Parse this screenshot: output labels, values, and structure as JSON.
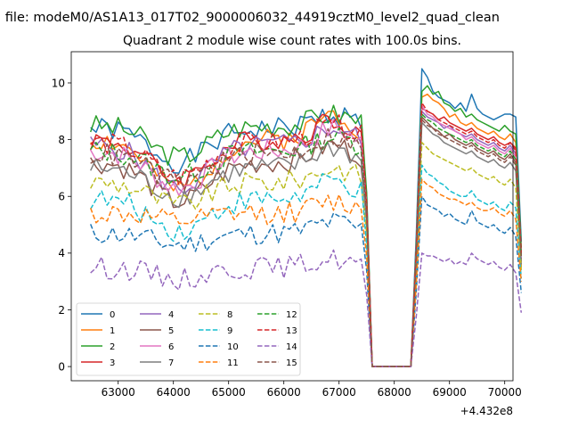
{
  "header_text": "n file: modeM0/AS1A13_017T02_9000006032_44919cztM0_level2_quad_clean",
  "chart_data": {
    "type": "line",
    "title": "Quadrant 2 module wise count rates with 100.0s bins.",
    "xlabel": "",
    "ylabel": "",
    "x_offset_label": "+4.432e8",
    "xlim": [
      62150,
      70150
    ],
    "ylim": [
      -0.5,
      11.1
    ],
    "xticks": [
      63000,
      64000,
      65000,
      66000,
      67000,
      68000,
      69000,
      70000
    ],
    "xtick_labels": [
      "63000",
      "64000",
      "65000",
      "66000",
      "67000",
      "68000",
      "69000",
      "70000"
    ],
    "yticks": [
      0,
      2,
      4,
      6,
      8,
      10
    ],
    "ytick_labels": [
      "0",
      "2",
      "4",
      "6",
      "8",
      "10"
    ],
    "grid": false,
    "legend": {
      "placement": "lower-left",
      "columns": 4
    },
    "x_start": 62500,
    "x_step": 100,
    "series": [
      {
        "name": "0",
        "color": "#1f77b4",
        "dash": "solid",
        "base": 8.4,
        "drop": 1.2,
        "bump": 0.5,
        "seed": 1,
        "post": [
          10.5,
          10.2,
          9.7,
          9.5,
          9.4,
          9.3,
          9.1,
          9.3,
          9.0,
          9.6,
          9.1,
          8.9,
          8.8,
          8.7,
          8.8,
          8.9,
          8.9,
          8.8,
          4.4
        ]
      },
      {
        "name": "1",
        "color": "#ff7f0e",
        "dash": "solid",
        "base": 8.0,
        "drop": 1.8,
        "bump": 0.9,
        "seed": 2,
        "post": [
          9.5,
          9.6,
          9.4,
          9.3,
          9.1,
          8.8,
          8.9,
          8.6,
          8.5,
          8.6,
          8.4,
          8.3,
          8.2,
          8.3,
          8.1,
          8.0,
          8.2,
          7.9,
          3.5
        ]
      },
      {
        "name": "2",
        "color": "#2ca02c",
        "dash": "solid",
        "base": 8.5,
        "drop": 1.1,
        "bump": 0.4,
        "seed": 3,
        "post": [
          9.7,
          9.9,
          9.6,
          9.7,
          9.3,
          9.2,
          9.0,
          9.1,
          8.8,
          8.9,
          8.7,
          8.6,
          8.5,
          8.4,
          8.3,
          8.5,
          8.3,
          8.2,
          4.2
        ]
      },
      {
        "name": "3",
        "color": "#d62728",
        "dash": "solid",
        "base": 8.0,
        "drop": 1.4,
        "bump": 0.7,
        "seed": 4,
        "post": [
          9.1,
          9.0,
          8.9,
          8.7,
          8.8,
          8.6,
          8.5,
          8.4,
          8.3,
          8.4,
          8.2,
          8.1,
          8.0,
          8.1,
          7.9,
          7.8,
          7.9,
          7.7,
          4.0
        ]
      },
      {
        "name": "4",
        "color": "#9467bd",
        "dash": "solid",
        "base": 7.8,
        "drop": 1.5,
        "bump": 0.6,
        "seed": 5,
        "post": [
          9.0,
          8.8,
          8.7,
          8.6,
          8.4,
          8.5,
          8.3,
          8.2,
          8.1,
          8.2,
          8.0,
          7.9,
          7.8,
          7.9,
          7.7,
          7.6,
          7.8,
          7.5,
          3.9
        ]
      },
      {
        "name": "5",
        "color": "#8c564b",
        "dash": "solid",
        "base": 7.2,
        "drop": 1.4,
        "bump": 0.6,
        "seed": 6,
        "post": [
          8.8,
          8.6,
          8.4,
          8.3,
          8.1,
          8.2,
          8.0,
          7.9,
          7.8,
          7.9,
          7.7,
          7.6,
          7.5,
          7.6,
          7.4,
          7.3,
          7.5,
          7.2,
          3.7
        ]
      },
      {
        "name": "6",
        "color": "#e377c2",
        "dash": "solid",
        "base": 7.6,
        "drop": 1.3,
        "bump": 0.8,
        "seed": 7,
        "post": [
          9.2,
          8.9,
          8.8,
          8.6,
          8.5,
          8.4,
          8.3,
          8.2,
          8.0,
          8.1,
          7.9,
          7.8,
          7.7,
          7.8,
          7.6,
          7.5,
          7.7,
          7.4,
          3.8
        ]
      },
      {
        "name": "7",
        "color": "#7f7f7f",
        "dash": "solid",
        "base": 7.0,
        "drop": 1.0,
        "bump": 0.7,
        "seed": 8,
        "post": [
          8.6,
          8.4,
          8.2,
          8.1,
          7.9,
          7.8,
          7.7,
          7.6,
          7.5,
          7.6,
          7.4,
          7.3,
          7.2,
          7.3,
          7.1,
          7.0,
          7.2,
          6.9,
          3.6
        ]
      },
      {
        "name": "8",
        "color": "#bcbd22",
        "dash": "dashed",
        "base": 6.5,
        "drop": 0.8,
        "bump": 0.5,
        "seed": 9,
        "post": [
          7.9,
          7.7,
          7.5,
          7.4,
          7.3,
          7.2,
          7.1,
          7.0,
          6.9,
          7.0,
          6.8,
          6.7,
          6.6,
          6.7,
          6.5,
          6.4,
          6.6,
          6.3,
          3.4
        ]
      },
      {
        "name": "9",
        "color": "#17becf",
        "dash": "dashed",
        "base": 5.9,
        "drop": 1.1,
        "bump": 0.6,
        "seed": 10,
        "post": [
          7.1,
          6.8,
          6.7,
          6.5,
          6.4,
          6.2,
          6.1,
          6.0,
          6.0,
          6.2,
          5.9,
          5.8,
          5.7,
          5.8,
          5.6,
          5.5,
          5.8,
          5.6,
          3.1
        ]
      },
      {
        "name": "10",
        "color": "#1f77b4",
        "dash": "dashed",
        "base": 4.7,
        "drop": 0.4,
        "bump": 0.4,
        "seed": 11,
        "post": [
          6.0,
          5.7,
          5.6,
          5.5,
          5.3,
          5.4,
          5.2,
          5.1,
          5.0,
          5.5,
          5.1,
          5.0,
          4.9,
          5.0,
          4.8,
          4.7,
          4.9,
          4.6,
          2.6
        ]
      },
      {
        "name": "11",
        "color": "#ff7f0e",
        "dash": "dashed",
        "base": 5.4,
        "drop": 0.3,
        "bump": 0.4,
        "seed": 12,
        "post": [
          6.6,
          6.4,
          6.3,
          6.1,
          6.0,
          5.9,
          5.9,
          5.8,
          5.7,
          5.8,
          5.6,
          5.5,
          5.5,
          5.6,
          5.4,
          5.3,
          5.5,
          5.2,
          3.0
        ]
      },
      {
        "name": "12",
        "color": "#2ca02c",
        "dash": "dashed",
        "base": 7.6,
        "drop": 0.9,
        "bump": 0.5,
        "seed": 13,
        "post": [
          8.9,
          8.7,
          8.6,
          8.4,
          8.3,
          8.2,
          8.1,
          8.0,
          7.9,
          8.0,
          7.8,
          7.7,
          7.6,
          7.7,
          7.5,
          7.4,
          7.6,
          7.3,
          3.9
        ]
      },
      {
        "name": "13",
        "color": "#d62728",
        "dash": "dashed",
        "base": 7.9,
        "drop": 1.2,
        "bump": 0.6,
        "seed": 14,
        "post": [
          9.3,
          9.0,
          8.9,
          8.7,
          8.6,
          8.5,
          8.4,
          8.3,
          8.2,
          8.3,
          8.1,
          8.0,
          7.9,
          8.0,
          7.8,
          7.7,
          7.9,
          7.6,
          4.0
        ]
      },
      {
        "name": "14",
        "color": "#9467bd",
        "dash": "dashed",
        "base": 3.5,
        "drop": 0.4,
        "bump": 0.3,
        "seed": 15,
        "post": [
          4.0,
          3.9,
          3.9,
          3.8,
          3.7,
          3.8,
          3.6,
          3.7,
          3.6,
          4.0,
          3.8,
          3.7,
          3.6,
          3.7,
          3.5,
          3.4,
          3.6,
          3.3,
          1.9
        ]
      },
      {
        "name": "15",
        "color": "#8c564b",
        "dash": "dashed",
        "base": 7.5,
        "drop": 1.0,
        "bump": 0.6,
        "seed": 16,
        "post": [
          8.7,
          8.5,
          8.4,
          8.2,
          8.1,
          8.0,
          7.9,
          7.8,
          7.7,
          7.8,
          7.6,
          7.5,
          7.4,
          7.5,
          7.3,
          7.2,
          7.4,
          7.1,
          3.8
        ]
      }
    ]
  }
}
